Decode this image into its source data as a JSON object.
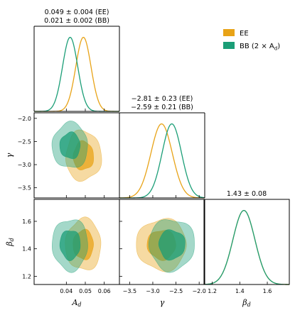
{
  "colors": {
    "EE": "#E8A317",
    "BB": "#1B9E77"
  },
  "legend": {
    "location": "top-right",
    "items": [
      {
        "key": "EE",
        "label": "EE"
      },
      {
        "key": "BB",
        "label": "BB (2 × A",
        "label_sub": "d",
        "label_tail": ")"
      }
    ]
  },
  "annotations": {
    "Ad": [
      "0.049 ± 0.004 (EE)",
      "0.021 ± 0.002 (BB)"
    ],
    "gamma": [
      "−2.81 ± 0.23 (EE)",
      "−2.59 ± 0.21 (BB)"
    ],
    "beta": [
      "1.43 ± 0.08"
    ]
  },
  "axis_labels": {
    "Ad": {
      "main": "A",
      "sub": "d"
    },
    "gamma": {
      "main": "γ",
      "sub": ""
    },
    "beta": {
      "main": "β",
      "sub": "d"
    }
  },
  "chart_data": {
    "type": "corner",
    "parameters": [
      "Ad",
      "gamma",
      "beta"
    ],
    "ranges": {
      "Ad": [
        0.023,
        0.068
      ],
      "gamma": [
        -3.72,
        -1.88
      ],
      "beta": [
        1.14,
        1.76
      ]
    },
    "ticks": {
      "Ad": {
        "values": [
          0.04,
          0.05,
          0.06
        ],
        "labels": [
          "0.04",
          "0.05",
          "0.06"
        ]
      },
      "gamma": {
        "values": [
          -3.5,
          -3.0,
          -2.5,
          -2.0
        ],
        "labels": [
          "−3.5",
          "−3.0",
          "−2.5",
          "−2.0"
        ]
      },
      "beta": {
        "values": [
          1.2,
          1.4,
          1.6
        ],
        "labels": [
          "1.2",
          "1.4",
          "1.6"
        ]
      }
    },
    "series": [
      {
        "key": "EE",
        "name": "EE",
        "mean": {
          "Ad": 0.049,
          "gamma": -2.81,
          "beta": 1.43
        },
        "sigma": {
          "Ad": 0.004,
          "gamma": 0.23,
          "beta": 0.08
        }
      },
      {
        "key": "BB",
        "name": "BB (2 × Ad)",
        "mean": {
          "Ad": 0.042,
          "gamma": -2.59,
          "beta": 1.43
        },
        "sigma": {
          "Ad": 0.004,
          "gamma": 0.21,
          "beta": 0.08
        }
      }
    ]
  }
}
